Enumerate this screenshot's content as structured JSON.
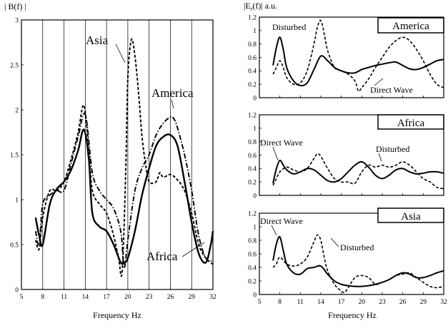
{
  "figure": {
    "left_ylabel": "| B(f) |",
    "right_ylabel": "|E",
    "right_ylabel_sub": "r",
    "right_ylabel_tail": "(f)| a.u.",
    "colors": {
      "ink": "#000000",
      "grid": "#000000",
      "background": "#ffffff"
    },
    "line_styles": {
      "solid": "Direct Wave / Africa",
      "dash": "Disturbed / Asia",
      "dashdot": "America"
    }
  },
  "chart_data": [
    {
      "id": "left",
      "type": "line",
      "title": "",
      "xlabel": "Frequency  Hz",
      "ylabel": "| B(f) |",
      "xlim": [
        5,
        32
      ],
      "ylim": [
        0,
        3
      ],
      "xticks": [
        5,
        8,
        11,
        14,
        17,
        20,
        23,
        26,
        29,
        32
      ],
      "yticks": [
        0,
        0.5,
        1,
        1.5,
        2,
        2.5,
        3
      ],
      "vertical_grid": true,
      "annotations": [
        {
          "text": "Asia",
          "series": "Asia"
        },
        {
          "text": "America",
          "series": "America"
        },
        {
          "text": "Africa",
          "series": "Africa"
        }
      ],
      "series": [
        {
          "name": "Africa",
          "style": "solid",
          "x": [
            7,
            7.5,
            8,
            9,
            10,
            11,
            12,
            13,
            13.8,
            14.5,
            15,
            16,
            17,
            18,
            19,
            19.5,
            20,
            21,
            22,
            23,
            24,
            25,
            26,
            27,
            28,
            29,
            30,
            31,
            31.7,
            32
          ],
          "y": [
            0.8,
            0.6,
            0.5,
            0.95,
            1.12,
            1.2,
            1.33,
            1.55,
            1.78,
            1.45,
            0.85,
            0.7,
            0.65,
            0.5,
            0.3,
            0.3,
            0.35,
            0.65,
            1.05,
            1.35,
            1.6,
            1.7,
            1.72,
            1.6,
            1.2,
            0.75,
            0.4,
            0.3,
            0.5,
            0.65
          ]
        },
        {
          "name": "Asia",
          "style": "dash",
          "x": [
            7,
            7.5,
            8,
            9,
            10,
            11,
            12,
            13,
            13.8,
            14.5,
            15,
            16,
            17,
            18,
            18.7,
            19.2,
            19.7,
            20,
            20.5,
            21,
            21.5,
            22,
            22.5,
            23,
            24,
            24.5,
            25,
            26,
            27,
            28,
            29,
            30,
            31,
            32
          ],
          "y": [
            0.55,
            0.45,
            0.8,
            1.1,
            1.1,
            1.2,
            1.45,
            1.75,
            2.05,
            1.55,
            1.1,
            0.95,
            0.85,
            0.6,
            0.35,
            0.2,
            1.3,
            2.35,
            2.78,
            2.6,
            2.2,
            1.7,
            1.4,
            1.2,
            1.2,
            1.3,
            1.25,
            1.28,
            1.22,
            1.1,
            0.85,
            0.5,
            0.35,
            0.28
          ]
        },
        {
          "name": "America",
          "style": "dashdot",
          "x": [
            7,
            7.5,
            8,
            9,
            10,
            11,
            12,
            13,
            14,
            15,
            16,
            17,
            18,
            19,
            19.5,
            20,
            21,
            22,
            23,
            24,
            25,
            26,
            26.5,
            27,
            28,
            29,
            30,
            31,
            32
          ],
          "y": [
            0.65,
            0.5,
            0.95,
            1.05,
            1.1,
            1.1,
            1.4,
            1.7,
            1.95,
            1.3,
            1.1,
            1.0,
            0.9,
            0.65,
            0.25,
            0.55,
            1.1,
            1.35,
            1.5,
            1.72,
            1.85,
            1.92,
            1.9,
            1.8,
            1.5,
            1.1,
            0.6,
            0.35,
            0.32
          ]
        }
      ]
    },
    {
      "id": "right-america",
      "type": "line",
      "title": "America",
      "ylabel": "|Er(f)| a.u.",
      "xlim": [
        5,
        32
      ],
      "ylim": [
        0,
        1.2
      ],
      "xticks": [
        5,
        8,
        11,
        14,
        17,
        20,
        23,
        26,
        29,
        32
      ],
      "yticks": [
        0,
        0.2,
        0.4,
        0.6,
        0.8,
        1,
        1.2
      ],
      "annotations": [
        {
          "text": "Disturbed",
          "series": "Disturbed"
        },
        {
          "text": "Direct Wave",
          "series": "Direct Wave"
        }
      ],
      "series": [
        {
          "name": "Direct Wave",
          "style": "solid",
          "x": [
            7,
            7.5,
            8,
            8.5,
            9,
            10,
            11,
            12,
            13,
            14,
            15,
            16,
            17,
            18,
            19,
            20,
            21,
            22,
            23,
            24,
            25,
            26,
            27,
            28,
            29,
            30,
            31,
            32
          ],
          "y": [
            0.48,
            0.75,
            0.9,
            0.72,
            0.45,
            0.25,
            0.18,
            0.22,
            0.42,
            0.62,
            0.55,
            0.45,
            0.4,
            0.37,
            0.37,
            0.42,
            0.45,
            0.48,
            0.5,
            0.52,
            0.53,
            0.48,
            0.43,
            0.42,
            0.45,
            0.5,
            0.55,
            0.57
          ]
        },
        {
          "name": "Disturbed",
          "style": "dash",
          "x": [
            7,
            7.5,
            8,
            8.5,
            9,
            10,
            11,
            12,
            13,
            13.5,
            14,
            14.5,
            15,
            16,
            17,
            18,
            19,
            19.5,
            20,
            21,
            22,
            23,
            24,
            25,
            26,
            27,
            28,
            29,
            30,
            31,
            32
          ],
          "y": [
            0.35,
            0.45,
            0.55,
            0.45,
            0.3,
            0.2,
            0.22,
            0.4,
            0.8,
            1.05,
            1.15,
            0.95,
            0.7,
            0.45,
            0.4,
            0.35,
            0.25,
            0.1,
            0.15,
            0.28,
            0.45,
            0.6,
            0.75,
            0.85,
            0.9,
            0.85,
            0.72,
            0.55,
            0.35,
            0.2,
            0.15
          ]
        }
      ]
    },
    {
      "id": "right-africa",
      "type": "line",
      "title": "Africa",
      "xlim": [
        5,
        32
      ],
      "ylim": [
        0,
        1.2
      ],
      "xticks": [
        5,
        8,
        11,
        14,
        17,
        20,
        23,
        26,
        29,
        32
      ],
      "yticks": [
        0,
        0.2,
        0.4,
        0.6,
        0.8,
        1,
        1.2
      ],
      "annotations": [
        {
          "text": "Direct Wave",
          "series": "Direct Wave"
        },
        {
          "text": "Disturbed",
          "series": "Disturbed"
        }
      ],
      "series": [
        {
          "name": "Direct Wave",
          "style": "solid",
          "x": [
            7,
            7.5,
            8,
            8.5,
            9,
            10,
            11,
            12,
            13,
            14,
            15,
            16,
            17,
            18,
            19,
            20,
            21,
            22,
            23,
            24,
            25,
            26,
            27,
            28,
            29,
            30,
            31,
            32
          ],
          "y": [
            0.18,
            0.4,
            0.52,
            0.45,
            0.38,
            0.32,
            0.35,
            0.4,
            0.38,
            0.3,
            0.22,
            0.2,
            0.25,
            0.35,
            0.45,
            0.5,
            0.42,
            0.3,
            0.25,
            0.3,
            0.38,
            0.4,
            0.35,
            0.32,
            0.33,
            0.35,
            0.35,
            0.33
          ]
        },
        {
          "name": "Disturbed",
          "style": "dash",
          "x": [
            7,
            7.5,
            8,
            9,
            10,
            11,
            12,
            13,
            13.5,
            14,
            15,
            16,
            17,
            18,
            19,
            20,
            21,
            22,
            23,
            24,
            25,
            26,
            27,
            28,
            29,
            30,
            31,
            32
          ],
          "y": [
            0.15,
            0.25,
            0.35,
            0.42,
            0.38,
            0.35,
            0.4,
            0.55,
            0.62,
            0.58,
            0.4,
            0.25,
            0.2,
            0.2,
            0.18,
            0.35,
            0.45,
            0.42,
            0.45,
            0.42,
            0.45,
            0.5,
            0.45,
            0.35,
            0.25,
            0.2,
            0.12,
            0.1
          ]
        }
      ]
    },
    {
      "id": "right-asia",
      "type": "line",
      "title": "Asia",
      "xlabel": "Frequency  Hz",
      "xlim": [
        5,
        32
      ],
      "ylim": [
        0,
        1.2
      ],
      "xticks": [
        5,
        8,
        11,
        14,
        17,
        20,
        23,
        26,
        29,
        32
      ],
      "yticks": [
        0,
        0.2,
        0.4,
        0.6,
        0.8,
        1,
        1.2
      ],
      "annotations": [
        {
          "text": "Direct Wave",
          "series": "Direct Wave"
        },
        {
          "text": "Disturbed",
          "series": "Disturbed"
        }
      ],
      "series": [
        {
          "name": "Direct Wave",
          "style": "solid",
          "x": [
            7,
            7.5,
            8,
            8.5,
            9,
            10,
            11,
            12,
            13,
            14,
            15,
            16,
            17,
            18,
            19,
            20,
            21,
            22,
            23,
            24,
            25,
            26,
            27,
            28,
            29,
            30,
            31,
            32
          ],
          "y": [
            0.5,
            0.75,
            0.85,
            0.65,
            0.45,
            0.32,
            0.3,
            0.38,
            0.4,
            0.42,
            0.3,
            0.2,
            0.15,
            0.13,
            0.12,
            0.12,
            0.13,
            0.15,
            0.18,
            0.22,
            0.28,
            0.32,
            0.3,
            0.25,
            0.25,
            0.28,
            0.32,
            0.35
          ]
        },
        {
          "name": "Disturbed",
          "style": "dash",
          "x": [
            7,
            7.5,
            8,
            9,
            10,
            11,
            12,
            13,
            13.5,
            14,
            14.5,
            15,
            16,
            17,
            17.5,
            18,
            19,
            20,
            21,
            22,
            23,
            24,
            25,
            26,
            27,
            28,
            29,
            30,
            31,
            32
          ],
          "y": [
            0.4,
            0.45,
            0.55,
            0.45,
            0.42,
            0.45,
            0.55,
            0.78,
            0.88,
            0.8,
            0.55,
            0.35,
            0.15,
            0.05,
            0.03,
            0.1,
            0.25,
            0.28,
            0.25,
            0.15,
            0.18,
            0.22,
            0.28,
            0.3,
            0.32,
            0.25,
            0.18,
            0.12,
            0.1,
            0.12
          ]
        }
      ]
    }
  ]
}
